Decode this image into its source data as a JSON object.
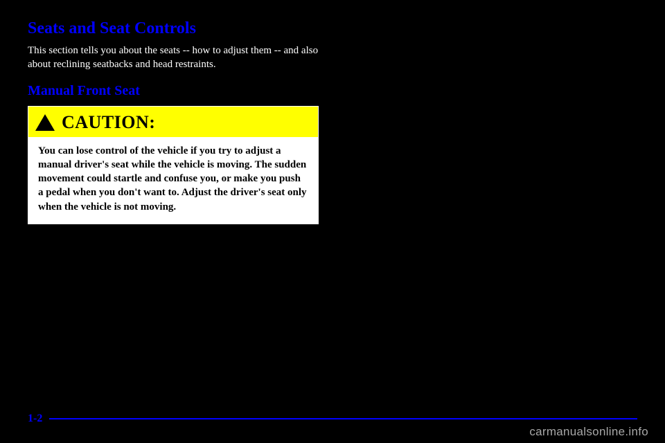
{
  "headings": {
    "main": "Seats and Seat Controls",
    "sub": "Manual Front Seat"
  },
  "intro_text": "This section tells you about the seats -- how to adjust them -- and also about reclining seatbacks and head restraints.",
  "caution": {
    "label": "CAUTION:",
    "body": "You can lose control of the vehicle if you try to adjust a manual driver's seat while the vehicle is moving. The sudden movement could startle and confuse you, or make you push a pedal when you don't want to. Adjust the driver's seat only when the vehicle is not moving.",
    "header_bg": "#ffff00",
    "body_bg": "#ffffff",
    "text_color": "#000000"
  },
  "footer": {
    "page_number": "1-2",
    "rule_color": "#0000ff"
  },
  "watermark": "carmanualsonline.info",
  "colors": {
    "page_bg": "#000000",
    "heading_color": "#0000ff",
    "body_text_color": "#ffffff"
  }
}
